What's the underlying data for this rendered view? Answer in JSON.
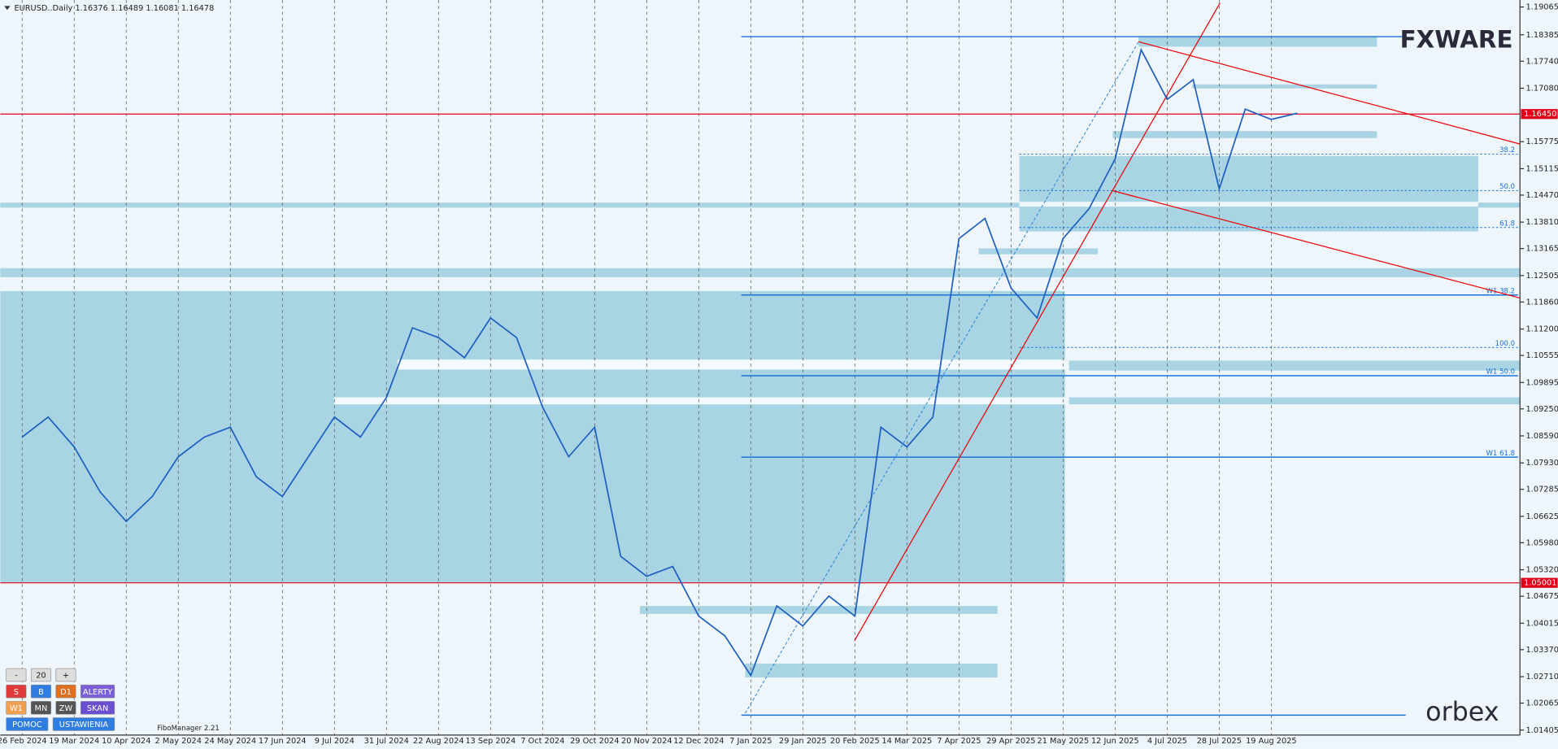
{
  "chart_data": {
    "type": "line",
    "title": "EURUSD..Daily  1.16376 1.16489 1.16081 1.16478",
    "categories": [
      "26 Feb 2024",
      null,
      "19 Mar 2024",
      null,
      "10 Apr 2024",
      null,
      "2 May 2024",
      null,
      "24 May 2024",
      null,
      "17 Jun 2024",
      null,
      "9 Jul 2024",
      null,
      "31 Jul 2024",
      null,
      "22 Aug 2024",
      null,
      "13 Sep 2024",
      null,
      "7 Oct 2024",
      null,
      "29 Oct 2024",
      null,
      "20 Nov 2024",
      null,
      "12 Dec 2024",
      null,
      "7 Jan 2025",
      null,
      "29 Jan 2025",
      null,
      "20 Feb 2025",
      null,
      "14 Mar 2025",
      null,
      "7 Apr 2025",
      null,
      "29 Apr 2025",
      null,
      "21 May 2025",
      null,
      "12 Jun 2025",
      null,
      "4 Jul 2025",
      null,
      "28 Jul 2025",
      null,
      "19 Aug 2025",
      null
    ],
    "values": [
      1.0856,
      1.0905,
      1.0832,
      1.0722,
      1.065,
      1.0711,
      1.0808,
      1.0856,
      1.088,
      1.0759,
      1.0711,
      1.0808,
      1.0905,
      1.0856,
      1.0953,
      1.1123,
      1.1099,
      1.105,
      1.1147,
      1.1099,
      1.0929,
      1.0808,
      1.088,
      1.0565,
      1.0516,
      1.054,
      1.0419,
      1.0371,
      1.0274,
      1.0444,
      1.0395,
      1.0468,
      1.0419,
      1.088,
      1.0832,
      1.0905,
      1.1341,
      1.139,
      1.122,
      1.1147,
      1.1341,
      1.1414,
      1.1535,
      1.1802,
      1.1681,
      1.1729,
      1.1462,
      1.1657,
      1.1632,
      1.1647
    ],
    "color": "#1f5fbf",
    "ylim": [
      1.01283,
      1.19235
    ],
    "yticks": [
      1.19065,
      1.18385,
      {
        "value": 1.1774,
        "label": "1.17740"
      },
      {
        "value": 1.1708,
        "label": "1.17080"
      },
      1.15775,
      1.15115,
      {
        "value": 1.1447,
        "label": "1.14470"
      },
      {
        "value": 1.1381,
        "label": "1.13810"
      },
      1.13165,
      1.12505,
      {
        "value": 1.1186,
        "label": "1.11860"
      },
      {
        "value": 1.112,
        "label": "1.11200"
      },
      1.10555,
      1.09895,
      {
        "value": 1.0925,
        "label": "1.09250"
      },
      {
        "value": 1.0859,
        "label": "1.08590"
      },
      {
        "value": 1.0793,
        "label": "1.07930"
      },
      1.07285,
      1.06625,
      {
        "value": 1.0598,
        "label": "1.05980"
      },
      {
        "value": 1.0532,
        "label": "1.05320"
      },
      1.04675,
      1.04015,
      {
        "value": 1.0337,
        "label": "1.03370"
      },
      {
        "value": 1.0271,
        "label": "1.02710"
      },
      1.02065,
      1.01405
    ],
    "grid": true,
    "price_lines": [
      {
        "value": 1.1645,
        "label": "1.16450",
        "color": "#e0001a"
      },
      {
        "value": 1.05001,
        "label": "1.05001",
        "color": "#e0001a"
      }
    ],
    "levels": [
      1.1834,
      1.0177
    ],
    "fibo_levels": [
      {
        "value": 1.1547,
        "label": "38.2",
        "dashed": true
      },
      {
        "value": 1.1458,
        "label": "50.0",
        "dashed": true
      },
      {
        "value": 1.1368,
        "label": "61.8",
        "dashed": true
      },
      {
        "value": 1.1075,
        "label": "100.0",
        "dashed": true
      },
      {
        "value": 1.1203,
        "label": "W1 38.2",
        "dashed": false
      },
      {
        "value": 1.1006,
        "label": "W1 50.0",
        "dashed": false
      },
      {
        "value": 1.0807,
        "label": "W1 61.8",
        "dashed": false
      }
    ],
    "indicator": "FiboManager 2.21"
  },
  "logos": {
    "top": "FXWARE",
    "bottom": "orbex"
  },
  "toolbar": {
    "rows": [
      [
        "-",
        "20",
        "+"
      ],
      [
        "S",
        "B",
        "D1",
        "ALERTY"
      ],
      [
        "W1",
        "MN",
        "ZW",
        "SKAN"
      ],
      [
        "POMOC",
        "USTAWIENIA"
      ]
    ]
  }
}
